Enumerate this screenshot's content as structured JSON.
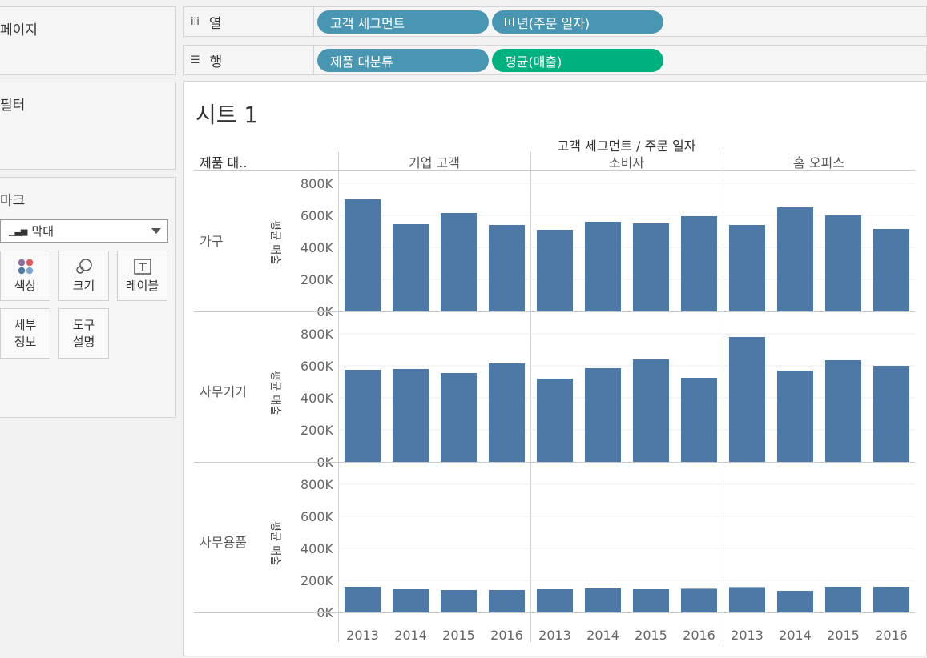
{
  "panels": {
    "pages": "페이지",
    "filters": "필터",
    "marks": "마크"
  },
  "marks": {
    "type": "막대",
    "buttons": {
      "color": "색상",
      "size": "크기",
      "label": "레이블",
      "detail_l1": "세부",
      "detail_l2": "정보",
      "tooltip_l1": "도구",
      "tooltip_l2": "설명"
    },
    "color_dots": [
      "#8c6d9f",
      "#e15759",
      "#4e79a7",
      "#7ea6d4"
    ]
  },
  "shelves": {
    "columns": {
      "label": "열",
      "pills": [
        "고객 세그먼트",
        "년(주문 일자)"
      ]
    },
    "rows": {
      "label": "행",
      "pills": [
        "제품 대분류",
        "평균(매출)"
      ]
    }
  },
  "sheet": {
    "title": "시트 1",
    "col_header_title": "고객 세그먼트 / 주문 일자",
    "row_header_title": "제품 대..",
    "measure_label": "평균 매출"
  },
  "chart_data": {
    "type": "bar",
    "bar_color": "#4e79a7",
    "columns": [
      "기업 고객",
      "소비자",
      "홈 오피스"
    ],
    "rows": [
      "가구",
      "사무기기",
      "사무용품"
    ],
    "years": [
      "2013",
      "2014",
      "2015",
      "2016"
    ],
    "y_ticks": [
      "0K",
      "200K",
      "400K",
      "600K",
      "800K"
    ],
    "ylim": [
      0,
      820000
    ],
    "values": {
      "가구": {
        "기업 고객": [
          700000,
          545000,
          615000,
          540000
        ],
        "소비자": [
          510000,
          560000,
          550000,
          595000
        ],
        "홈 오피스": [
          540000,
          650000,
          600000,
          515000
        ]
      },
      "사무기기": {
        "기업 고객": [
          575000,
          580000,
          555000,
          615000
        ],
        "소비자": [
          520000,
          585000,
          640000,
          525000
        ],
        "홈 오피스": [
          780000,
          570000,
          635000,
          600000
        ]
      },
      "사무용품": {
        "기업 고객": [
          160000,
          145000,
          140000,
          140000
        ],
        "소비자": [
          145000,
          150000,
          145000,
          148000
        ],
        "홈 오피스": [
          158000,
          135000,
          160000,
          160000
        ]
      }
    }
  }
}
